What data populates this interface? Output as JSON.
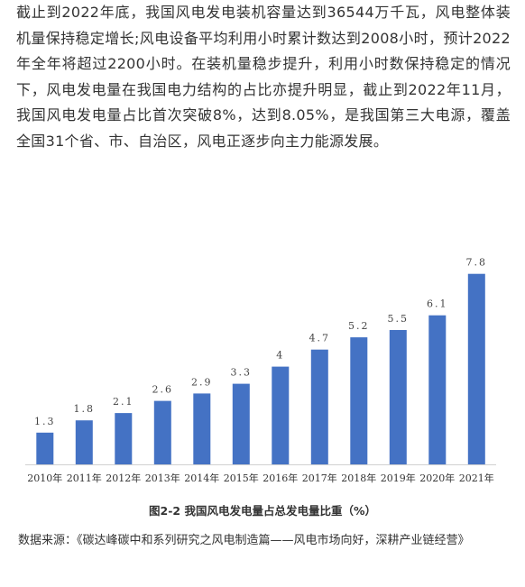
{
  "article": {
    "paragraph": "截止到2022年底，我国风电发电装机容量达到36544万千瓦，风电整体装机量保持稳定增长;风电设备平均利用小时累计数达到2008小时，预计2022年全年将超过2200小时。在装机量稳步提升，利用小时数保持稳定的情况下，风电发电量在我国电力结构的占比亦提升明显，截止到2022年11月，我国风电发电量占比首次突破8%，达到8.05%，是我国第三大电源，覆盖全国31个省、市、自治区，风电正逐步向主力能源发展。"
  },
  "figure": {
    "caption": "图2-2 我国风电发电量占总发电量比重（%）",
    "source": "数据来源：《碳达峰碳中和系列研究之风电制造篇——风电市场向好，深耕产业链经营》"
  },
  "chart_data": {
    "type": "bar",
    "title": "",
    "xlabel": "",
    "ylabel": "",
    "categories": [
      "2010年",
      "2011年",
      "2012年",
      "2013年",
      "2014年",
      "2015年",
      "2016年",
      "2017年",
      "2018年",
      "2019年",
      "2020年",
      "2021年"
    ],
    "values": [
      1.3,
      1.8,
      2.1,
      2.6,
      2.9,
      3.3,
      4,
      4.7,
      5.2,
      5.5,
      6.1,
      7.8
    ],
    "value_labels": [
      "1.3",
      "1.8",
      "2.1",
      "2.6",
      "2.9",
      "3.3",
      "4",
      "4.7",
      "5.2",
      "5.5",
      "6.1",
      "7.8"
    ],
    "ylim": [
      0,
      8.6
    ],
    "grid": false,
    "legend": "none",
    "bar_color": "#4472C4"
  }
}
